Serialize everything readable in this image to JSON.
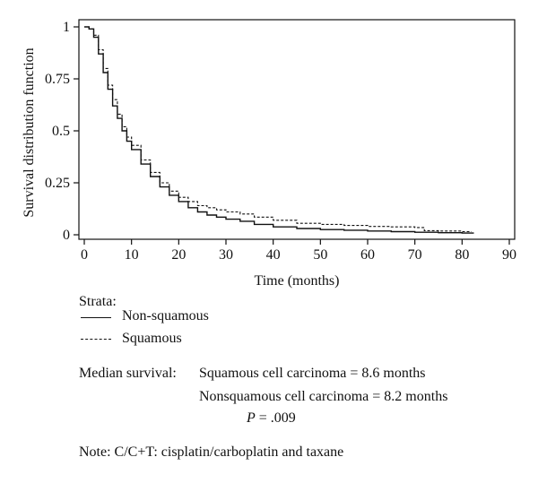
{
  "chart_data": {
    "type": "line",
    "title": "",
    "xlabel": "Time (months)",
    "ylabel": "Survival distribution function",
    "xlim": [
      0,
      90
    ],
    "ylim": [
      0,
      1
    ],
    "xticks": [
      0,
      10,
      20,
      30,
      40,
      50,
      60,
      70,
      80,
      90
    ],
    "yticks": [
      0,
      0.25,
      0.5,
      0.75,
      1
    ],
    "ytick_labels": [
      "0",
      "0.25",
      "0.5",
      "0.75",
      "1"
    ],
    "series": [
      {
        "name": "Non-squamous",
        "style": "solid",
        "x": [
          0,
          1,
          2,
          3,
          4,
          5,
          6,
          7,
          8,
          9,
          10,
          12,
          14,
          16,
          18,
          20,
          22,
          24,
          26,
          28,
          30,
          33,
          36,
          40,
          45,
          50,
          55,
          60,
          65,
          70,
          75,
          80,
          82.5
        ],
        "y": [
          1,
          0.99,
          0.95,
          0.87,
          0.78,
          0.7,
          0.62,
          0.56,
          0.5,
          0.45,
          0.41,
          0.34,
          0.28,
          0.23,
          0.19,
          0.16,
          0.13,
          0.11,
          0.095,
          0.085,
          0.075,
          0.065,
          0.05,
          0.038,
          0.03,
          0.025,
          0.022,
          0.018,
          0.015,
          0.012,
          0.01,
          0.008,
          0.008
        ]
      },
      {
        "name": "Squamous",
        "style": "dashed",
        "x": [
          0,
          1,
          2,
          3,
          4,
          5,
          6,
          7,
          8,
          9,
          10,
          12,
          14,
          16,
          18,
          20,
          22,
          24,
          26,
          28,
          30,
          33,
          36,
          40,
          45,
          50,
          55,
          60,
          65,
          70,
          72,
          75,
          80,
          82
        ],
        "y": [
          1,
          0.99,
          0.96,
          0.89,
          0.8,
          0.72,
          0.65,
          0.58,
          0.52,
          0.47,
          0.43,
          0.36,
          0.3,
          0.25,
          0.21,
          0.18,
          0.16,
          0.14,
          0.13,
          0.12,
          0.11,
          0.1,
          0.085,
          0.07,
          0.055,
          0.05,
          0.045,
          0.04,
          0.038,
          0.035,
          0.02,
          0.018,
          0.015,
          0.015
        ]
      }
    ]
  },
  "legend": {
    "title": "Strata:",
    "items": [
      {
        "label": "Non-squamous",
        "style": "solid"
      },
      {
        "label": "Squamous",
        "style": "dashed"
      }
    ]
  },
  "notes": {
    "median_label": "Median survival:",
    "squamous_text": "Squamous cell carcinoma = 8.6 months",
    "nonsquamous_text": "Nonsquamous cell carcinoma = 8.2 months",
    "p_symbol": "P",
    "p_text": " = .009",
    "footnote": "Note: C/C+T: cisplatin/carboplatin and taxane"
  }
}
